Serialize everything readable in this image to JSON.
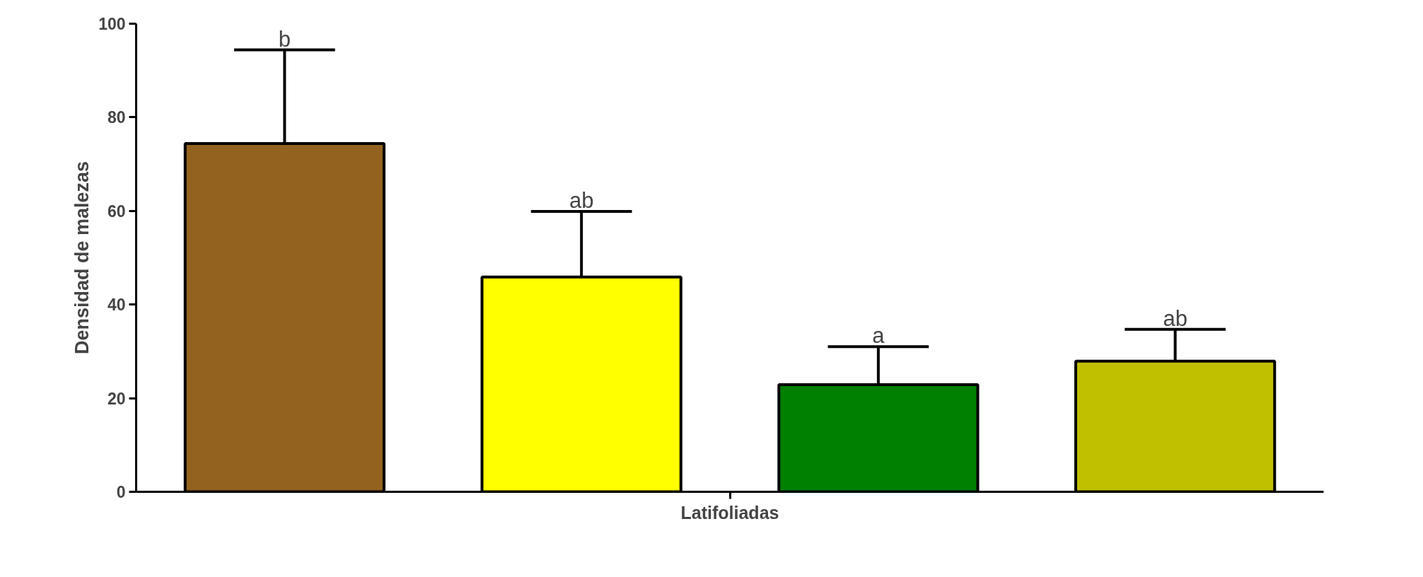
{
  "chart_data": {
    "type": "bar",
    "ylabel": "Densidad de malezas",
    "categories": [
      "Latifoliadas"
    ],
    "series": [
      {
        "color": "#93621f",
        "values": [
          74.4
        ],
        "errors": [
          [
            74.4,
            94.4
          ]
        ]
      },
      {
        "color": "#ffff00",
        "values": [
          45.9
        ],
        "errors": [
          [
            45.9,
            59.9
          ]
        ]
      },
      {
        "color": "#008000",
        "values": [
          22.9
        ],
        "errors": [
          [
            22.9,
            31.0
          ]
        ]
      },
      {
        "color": "#c0c000",
        "values": [
          27.9
        ],
        "errors": [
          [
            27.9,
            34.7
          ]
        ]
      }
    ],
    "annotations": [
      "b",
      "ab",
      "a",
      "ab"
    ],
    "ylim": [
      0,
      100
    ],
    "yticks": [
      0,
      20,
      40,
      60,
      80,
      100
    ]
  }
}
